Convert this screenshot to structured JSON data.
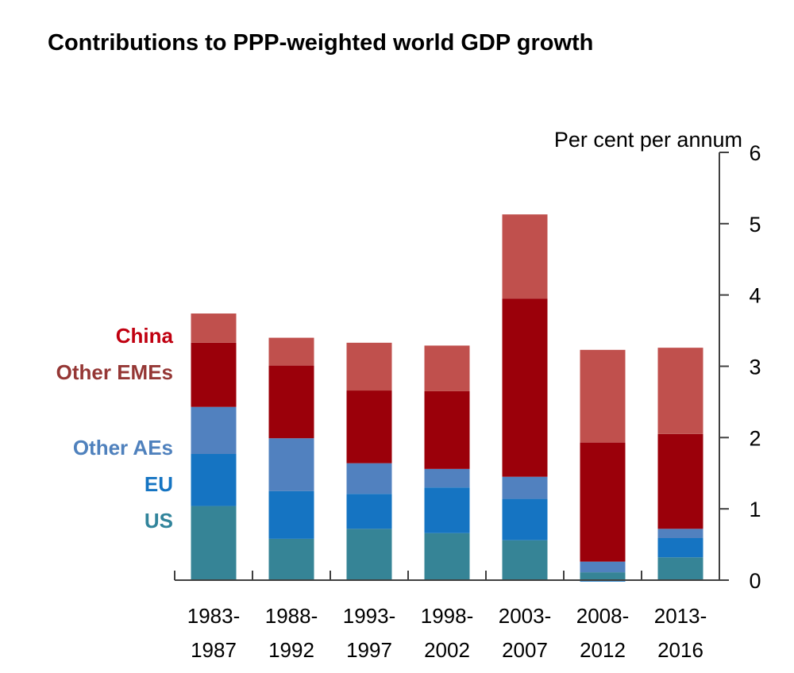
{
  "chart_data": {
    "type": "bar",
    "stacked": true,
    "title": "Contributions to PPP-weighted world GDP growth",
    "ylabel": "Per cent per annum",
    "xlabel": "",
    "ylim": [
      0,
      6
    ],
    "yticks": [
      0,
      1,
      2,
      3,
      4,
      5,
      6
    ],
    "y_axis_side": "right",
    "grid": false,
    "legend_placement": "left",
    "categories": [
      [
        "1983-",
        "1987"
      ],
      [
        "1988-",
        "1992"
      ],
      [
        "1993-",
        "1997"
      ],
      [
        "1998-",
        "2002"
      ],
      [
        "2003-",
        "2007"
      ],
      [
        "2008-",
        "2012"
      ],
      [
        "2013-",
        "2016"
      ]
    ],
    "series": [
      {
        "name": "US",
        "color": "#368496",
        "label_color": "#31849B",
        "values": [
          1.04,
          0.58,
          0.72,
          0.66,
          0.56,
          0.11,
          0.32
        ]
      },
      {
        "name": "EU",
        "color": "#1574C2",
        "label_color": "#1574C2",
        "values": [
          0.73,
          0.67,
          0.49,
          0.64,
          0.58,
          -0.02,
          0.27
        ]
      },
      {
        "name": "Other AEs",
        "color": "#5181BF",
        "label_color": "#4F81BD",
        "values": [
          0.66,
          0.74,
          0.43,
          0.26,
          0.31,
          0.15,
          0.13
        ]
      },
      {
        "name": "China",
        "color": "#9B000A",
        "label_color": "#C00010",
        "values": [
          0.9,
          1.02,
          1.02,
          1.09,
          2.5,
          1.67,
          1.33
        ]
      },
      {
        "name": "Other EMEs",
        "color": "#C0504D",
        "label_color": "#953735",
        "values": [
          0.41,
          0.39,
          0.67,
          0.64,
          1.18,
          1.3,
          1.21
        ]
      }
    ],
    "legend_order": [
      "China",
      "Other EMEs",
      "Other AEs",
      "EU",
      "US"
    ]
  }
}
